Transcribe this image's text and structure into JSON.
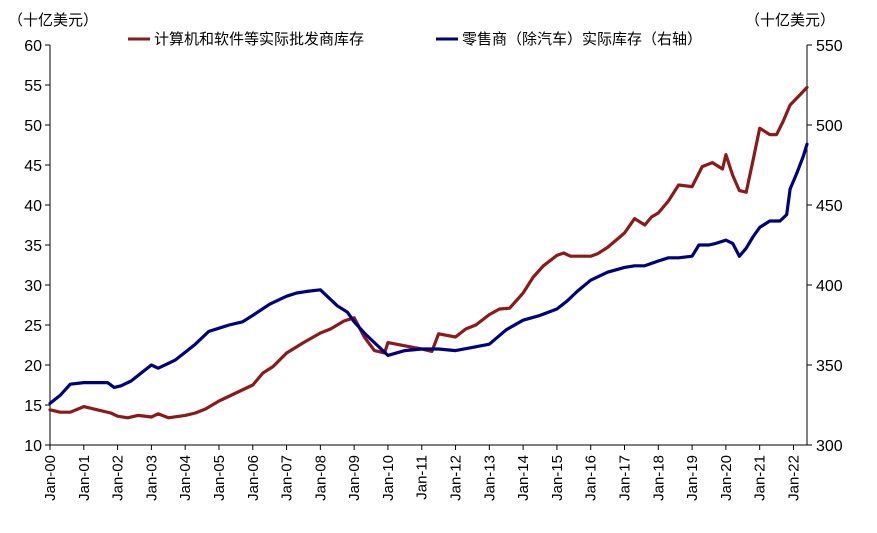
{
  "chart_data": {
    "type": "line",
    "yleft": {
      "unit": "（十亿美元）",
      "ylim": [
        10,
        60
      ],
      "ticks": [
        10,
        15,
        20,
        25,
        30,
        35,
        40,
        45,
        50,
        55,
        60
      ]
    },
    "yright": {
      "unit": "（十亿美元）",
      "ylim": [
        300,
        550
      ],
      "ticks": [
        300,
        350,
        400,
        450,
        500,
        550
      ]
    },
    "xticks": [
      "Jan-00",
      "Jan-01",
      "Jan-02",
      "Jan-03",
      "Jan-04",
      "Jan-05",
      "Jan-06",
      "Jan-07",
      "Jan-08",
      "Jan-09",
      "Jan-10",
      "Jan-11",
      "Jan-12",
      "Jan-13",
      "Jan-14",
      "Jan-15",
      "Jan-16",
      "Jan-17",
      "Jan-18",
      "Jan-19",
      "Jan-20",
      "Jan-21",
      "Jan-22"
    ],
    "x_start": 2000.0,
    "x_end": 2022.4,
    "grid": false,
    "legend_position": "top",
    "series": [
      {
        "name": "计算机和软件等实际批发商库存",
        "axis": "left",
        "color": "#8B1A1A",
        "points": [
          [
            2000.0,
            14.4
          ],
          [
            2000.3,
            14.1
          ],
          [
            2000.6,
            14.1
          ],
          [
            2001.0,
            14.8
          ],
          [
            2001.4,
            14.4
          ],
          [
            2001.8,
            14.0
          ],
          [
            2002.0,
            13.6
          ],
          [
            2002.3,
            13.4
          ],
          [
            2002.6,
            13.7
          ],
          [
            2003.0,
            13.5
          ],
          [
            2003.2,
            13.9
          ],
          [
            2003.5,
            13.4
          ],
          [
            2004.0,
            13.7
          ],
          [
            2004.3,
            14.0
          ],
          [
            2004.6,
            14.5
          ],
          [
            2005.0,
            15.5
          ],
          [
            2005.5,
            16.5
          ],
          [
            2006.0,
            17.5
          ],
          [
            2006.3,
            19.0
          ],
          [
            2006.6,
            19.8
          ],
          [
            2007.0,
            21.5
          ],
          [
            2007.5,
            22.8
          ],
          [
            2008.0,
            24.0
          ],
          [
            2008.3,
            24.5
          ],
          [
            2008.7,
            25.5
          ],
          [
            2009.0,
            25.9
          ],
          [
            2009.3,
            23.5
          ],
          [
            2009.6,
            21.8
          ],
          [
            2009.9,
            21.5
          ],
          [
            2010.0,
            22.8
          ],
          [
            2010.5,
            22.4
          ],
          [
            2011.0,
            22.0
          ],
          [
            2011.3,
            21.7
          ],
          [
            2011.5,
            23.9
          ],
          [
            2012.0,
            23.5
          ],
          [
            2012.3,
            24.5
          ],
          [
            2012.6,
            25.0
          ],
          [
            2013.0,
            26.3
          ],
          [
            2013.3,
            27.0
          ],
          [
            2013.6,
            27.1
          ],
          [
            2014.0,
            29.0
          ],
          [
            2014.3,
            31.0
          ],
          [
            2014.6,
            32.4
          ],
          [
            2015.0,
            33.7
          ],
          [
            2015.2,
            34.0
          ],
          [
            2015.4,
            33.6
          ],
          [
            2016.0,
            33.6
          ],
          [
            2016.2,
            33.9
          ],
          [
            2016.5,
            34.7
          ],
          [
            2017.0,
            36.5
          ],
          [
            2017.3,
            38.3
          ],
          [
            2017.6,
            37.5
          ],
          [
            2017.8,
            38.5
          ],
          [
            2018.0,
            39.0
          ],
          [
            2018.3,
            40.5
          ],
          [
            2018.6,
            42.5
          ],
          [
            2019.0,
            42.3
          ],
          [
            2019.3,
            44.8
          ],
          [
            2019.6,
            45.3
          ],
          [
            2019.9,
            44.5
          ],
          [
            2020.0,
            46.3
          ],
          [
            2020.2,
            43.7
          ],
          [
            2020.4,
            41.8
          ],
          [
            2020.6,
            41.6
          ],
          [
            2020.8,
            45.5
          ],
          [
            2021.0,
            49.6
          ],
          [
            2021.3,
            48.8
          ],
          [
            2021.5,
            48.8
          ],
          [
            2021.7,
            50.5
          ],
          [
            2021.9,
            52.5
          ],
          [
            2022.2,
            53.8
          ],
          [
            2022.4,
            54.7
          ]
        ]
      },
      {
        "name": "零售商（除汽车）实际库存（右轴）",
        "axis": "right",
        "color": "#00007F",
        "points": [
          [
            2000.0,
            326
          ],
          [
            2000.3,
            331
          ],
          [
            2000.6,
            338
          ],
          [
            2001.0,
            339
          ],
          [
            2001.4,
            339
          ],
          [
            2001.7,
            339
          ],
          [
            2001.9,
            336
          ],
          [
            2002.1,
            337
          ],
          [
            2002.4,
            340
          ],
          [
            2002.7,
            345
          ],
          [
            2003.0,
            350
          ],
          [
            2003.2,
            348
          ],
          [
            2003.5,
            351
          ],
          [
            2003.7,
            353
          ],
          [
            2004.0,
            358
          ],
          [
            2004.3,
            363
          ],
          [
            2004.7,
            371
          ],
          [
            2005.0,
            373
          ],
          [
            2005.3,
            375
          ],
          [
            2005.7,
            377
          ],
          [
            2006.0,
            381
          ],
          [
            2006.5,
            388
          ],
          [
            2007.0,
            393
          ],
          [
            2007.3,
            395
          ],
          [
            2007.6,
            396
          ],
          [
            2008.0,
            397
          ],
          [
            2008.2,
            393
          ],
          [
            2008.5,
            387
          ],
          [
            2008.8,
            383
          ],
          [
            2009.0,
            377
          ],
          [
            2009.3,
            370
          ],
          [
            2009.6,
            364
          ],
          [
            2010.0,
            356
          ],
          [
            2010.5,
            359
          ],
          [
            2011.0,
            360
          ],
          [
            2011.5,
            360
          ],
          [
            2012.0,
            359
          ],
          [
            2012.5,
            361
          ],
          [
            2013.0,
            363
          ],
          [
            2013.5,
            372
          ],
          [
            2014.0,
            378
          ],
          [
            2014.5,
            381
          ],
          [
            2015.0,
            385
          ],
          [
            2015.3,
            390
          ],
          [
            2015.6,
            396
          ],
          [
            2016.0,
            403
          ],
          [
            2016.5,
            408
          ],
          [
            2017.0,
            411
          ],
          [
            2017.3,
            412
          ],
          [
            2017.6,
            412
          ],
          [
            2018.0,
            415
          ],
          [
            2018.3,
            417
          ],
          [
            2018.6,
            417
          ],
          [
            2019.0,
            418
          ],
          [
            2019.2,
            425
          ],
          [
            2019.5,
            425
          ],
          [
            2019.7,
            426
          ],
          [
            2020.0,
            428
          ],
          [
            2020.2,
            426
          ],
          [
            2020.4,
            418
          ],
          [
            2020.6,
            423
          ],
          [
            2020.8,
            430
          ],
          [
            2021.0,
            436
          ],
          [
            2021.3,
            440
          ],
          [
            2021.6,
            440
          ],
          [
            2021.8,
            444
          ],
          [
            2021.9,
            460
          ],
          [
            2022.1,
            470
          ],
          [
            2022.3,
            481
          ],
          [
            2022.4,
            488
          ]
        ]
      }
    ]
  }
}
